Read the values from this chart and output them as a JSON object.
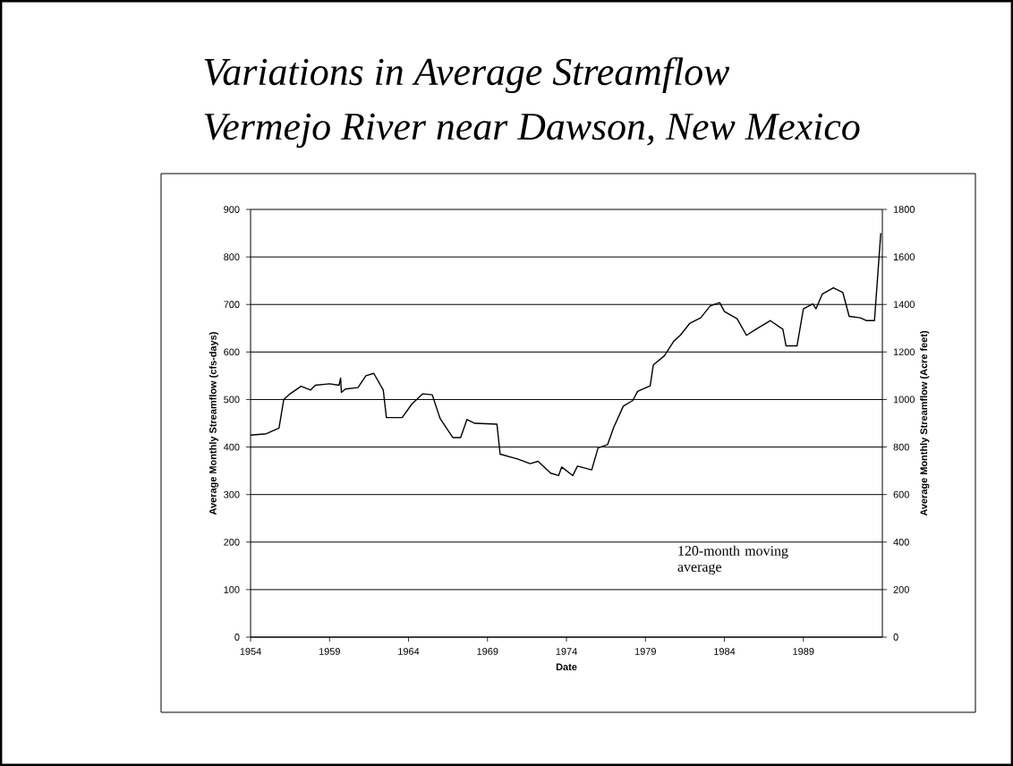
{
  "chart_data": {
    "type": "line",
    "title": "Variations in Average Streamflow",
    "subtitle": "Vermejo River near Dawson, New Mexico",
    "xlabel": "Date",
    "ylabel": "Average Monthly Streamflow (cfs-days)",
    "y2label": "Average Monthly Streamflow (Acre feet)",
    "annotations": [
      "120-month moving average"
    ],
    "x": [
      1954.0,
      1955.0,
      1955.8,
      1956.1,
      1956.5,
      1957.2,
      1957.8,
      1958.1,
      1959.0,
      1959.6,
      1959.7,
      1959.75,
      1960.0,
      1960.8,
      1961.3,
      1961.8,
      1962.4,
      1962.6,
      1963.6,
      1964.2,
      1964.9,
      1965.5,
      1966.0,
      1966.8,
      1967.3,
      1967.7,
      1968.2,
      1969.6,
      1969.8,
      1970.9,
      1971.7,
      1972.2,
      1973.0,
      1973.5,
      1973.7,
      1974.4,
      1974.7,
      1975.6,
      1976.0,
      1976.6,
      1977.0,
      1977.6,
      1978.2,
      1978.5,
      1979.3,
      1979.5,
      1980.2,
      1980.8,
      1981.2,
      1981.8,
      1982.5,
      1983.1,
      1983.7,
      1984.0,
      1984.8,
      1985.4,
      1986.0,
      1986.9,
      1987.7,
      1987.9,
      1988.6,
      1989.0,
      1989.6,
      1989.8,
      1990.2,
      1990.9,
      1991.5,
      1991.9,
      1992.6,
      1993.0,
      1993.5,
      1993.9
    ],
    "values": [
      425,
      428,
      440,
      500,
      512,
      528,
      520,
      530,
      533,
      530,
      545,
      515,
      522,
      525,
      550,
      555,
      520,
      462,
      462,
      490,
      512,
      510,
      460,
      420,
      420,
      458,
      450,
      448,
      385,
      375,
      365,
      370,
      345,
      340,
      358,
      340,
      360,
      352,
      398,
      405,
      442,
      486,
      498,
      517,
      529,
      573,
      592,
      623,
      635,
      660,
      672,
      697,
      704,
      685,
      670,
      635,
      648,
      666,
      648,
      613,
      613,
      691,
      701,
      691,
      722,
      735,
      725,
      675,
      672,
      666,
      666,
      850
    ],
    "color": "#000000",
    "line_style": "solid",
    "xlim": [
      1954,
      1994
    ],
    "xticks": [
      1954,
      1959,
      1964,
      1969,
      1974,
      1979,
      1984,
      1989
    ],
    "ylim": [
      0,
      900
    ],
    "yticks": [
      0,
      100,
      200,
      300,
      400,
      500,
      600,
      700,
      800,
      900
    ],
    "y2lim": [
      0,
      1800
    ],
    "y2ticks": [
      0,
      200,
      400,
      600,
      800,
      1000,
      1200,
      1400,
      1600,
      1800
    ],
    "grid": "y"
  }
}
